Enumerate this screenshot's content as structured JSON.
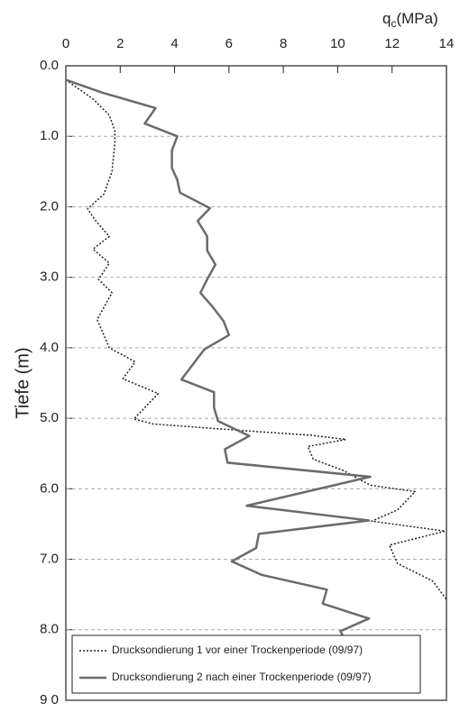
{
  "chart_data": {
    "type": "line",
    "xlabel": {
      "main": "q",
      "sub": "c",
      "unit": "(MPa)"
    },
    "ylabel": "Tiefe (m)",
    "xlim": [
      0,
      14
    ],
    "xticks": [
      0,
      2,
      4,
      6,
      8,
      10,
      12,
      14
    ],
    "ylim": [
      0,
      9
    ],
    "yticks": [
      {
        "value": 0,
        "label": "0.0"
      },
      {
        "value": 1,
        "label": "1.0"
      },
      {
        "value": 2,
        "label": "2.0"
      },
      {
        "value": 3,
        "label": "3.0"
      },
      {
        "value": 4,
        "label": "4.0"
      },
      {
        "value": 5,
        "label": "5.0"
      },
      {
        "value": 6,
        "label": "6.0"
      },
      {
        "value": 7,
        "label": "7.0"
      },
      {
        "value": 8,
        "label": "8.0"
      },
      {
        "value": 9,
        "label": "9 0"
      }
    ],
    "y_inverted": true,
    "grid": true,
    "legend": "lower left",
    "series": [
      {
        "name": "Drucksondierung 1 vor einer Trockenperiode (09/97)",
        "color": "#222222",
        "dash": "dotted",
        "x": [
          0,
          1.0,
          1.6,
          1.8,
          1.8,
          1.7,
          1.4,
          0.8,
          1.1,
          1.6,
          1.0,
          1.6,
          1.2,
          1.7,
          1.15,
          1.6,
          2.55,
          2.1,
          3.4,
          2.5,
          3.2,
          6.7,
          9.0,
          10.3,
          8.9,
          9.1,
          10.2,
          11.2,
          12.85,
          12.2,
          11.25,
          13.95,
          11.9,
          12.2,
          13.5,
          14
        ],
        "values": [
          0.2,
          0.47,
          0.7,
          0.92,
          1.1,
          1.5,
          1.82,
          2.03,
          2.2,
          2.42,
          2.6,
          2.8,
          3.03,
          3.22,
          3.6,
          4.0,
          4.2,
          4.44,
          4.65,
          5.01,
          5.08,
          5.18,
          5.24,
          5.3,
          5.4,
          5.58,
          5.74,
          5.95,
          6.04,
          6.3,
          6.46,
          6.6,
          6.8,
          7.06,
          7.31,
          7.57
        ]
      },
      {
        "name": "Drucksondierung 2 nach einer Trockenperiode (09/97)",
        "color": "#6b6b6b",
        "dash": "solid",
        "x": [
          0,
          1.33,
          3.3,
          2.9,
          4.1,
          3.9,
          3.9,
          4.1,
          4.2,
          5.3,
          4.85,
          5.2,
          5.2,
          5.5,
          5.2,
          4.95,
          5.4,
          5.8,
          6.0,
          5.1,
          4.25,
          5.45,
          5.45,
          5.6,
          6.75,
          5.85,
          5.95,
          11.2,
          6.65,
          11.15,
          7.1,
          7.0,
          6.1,
          7.2,
          9.6,
          9.45,
          11.15,
          10.1,
          10.3
        ],
        "values": [
          0.2,
          0.38,
          0.6,
          0.82,
          1.0,
          1.2,
          1.45,
          1.62,
          1.8,
          2.02,
          2.2,
          2.42,
          2.62,
          2.82,
          3.03,
          3.22,
          3.42,
          3.62,
          3.82,
          4.02,
          4.45,
          4.63,
          4.85,
          5.04,
          5.25,
          5.44,
          5.63,
          5.83,
          6.24,
          6.45,
          6.64,
          6.84,
          7.03,
          7.22,
          7.43,
          7.63,
          7.84,
          8.02,
          8.17
        ]
      }
    ]
  }
}
